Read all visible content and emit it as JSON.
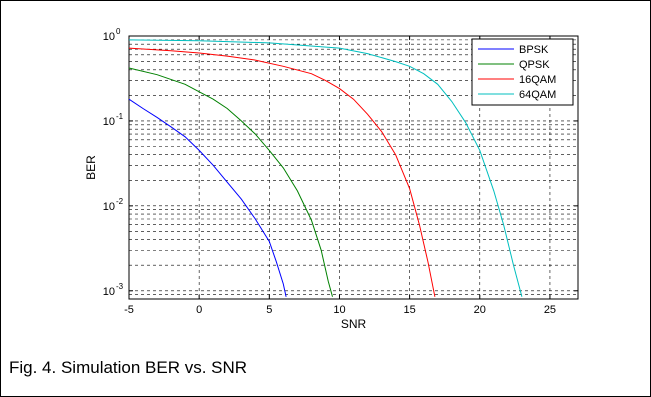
{
  "caption": "Fig. 4. Simulation BER vs. SNR",
  "chart_data": {
    "type": "line",
    "title": "",
    "xlabel": "SNR",
    "ylabel": "BER",
    "xlim": [
      -5,
      27
    ],
    "ylim": [
      0.0008,
      1
    ],
    "yscale": "log",
    "grid": true,
    "legend_position": "top-right",
    "x_ticks": [
      -5,
      0,
      5,
      10,
      15,
      20,
      25
    ],
    "y_ticks": [
      {
        "value": 1,
        "base": "10",
        "exp": "0"
      },
      {
        "value": 0.1,
        "base": "10",
        "exp": "-1"
      },
      {
        "value": 0.01,
        "base": "10",
        "exp": "-2"
      },
      {
        "value": 0.001,
        "base": "10",
        "exp": "-3"
      }
    ],
    "series": [
      {
        "name": "BPSK",
        "color": "#0000ff",
        "x": [
          -5,
          -4,
          -3,
          -2,
          -1,
          0,
          1,
          2,
          3,
          4,
          5,
          5.5,
          6,
          6.2
        ],
        "y": [
          0.18,
          0.14,
          0.11,
          0.085,
          0.065,
          0.045,
          0.03,
          0.019,
          0.012,
          0.007,
          0.0038,
          0.0022,
          0.0012,
          0.00085
        ]
      },
      {
        "name": "QPSK",
        "color": "#008000",
        "x": [
          -5,
          -3,
          -1,
          0,
          1,
          2,
          3,
          4,
          5,
          6,
          7,
          8,
          8.7,
          9.2,
          9.5
        ],
        "y": [
          0.42,
          0.35,
          0.27,
          0.22,
          0.18,
          0.14,
          0.1,
          0.07,
          0.045,
          0.028,
          0.015,
          0.0068,
          0.003,
          0.0013,
          0.00085
        ]
      },
      {
        "name": "16QAM",
        "color": "#ff0000",
        "x": [
          -5,
          -2,
          0,
          2,
          4,
          6,
          8,
          9,
          10,
          11,
          12,
          13,
          14,
          15,
          15.7,
          16.3,
          16.8
        ],
        "y": [
          0.72,
          0.67,
          0.63,
          0.58,
          0.52,
          0.44,
          0.36,
          0.3,
          0.24,
          0.18,
          0.12,
          0.075,
          0.04,
          0.016,
          0.006,
          0.0022,
          0.00085
        ]
      },
      {
        "name": "64QAM",
        "color": "#00bfbf",
        "x": [
          -5,
          0,
          5,
          10,
          12,
          14,
          15,
          16,
          17,
          18,
          19,
          20,
          21,
          21.7,
          22.4,
          23
        ],
        "y": [
          0.9,
          0.88,
          0.83,
          0.72,
          0.62,
          0.5,
          0.44,
          0.36,
          0.27,
          0.17,
          0.095,
          0.045,
          0.015,
          0.006,
          0.002,
          0.00085
        ]
      }
    ]
  }
}
